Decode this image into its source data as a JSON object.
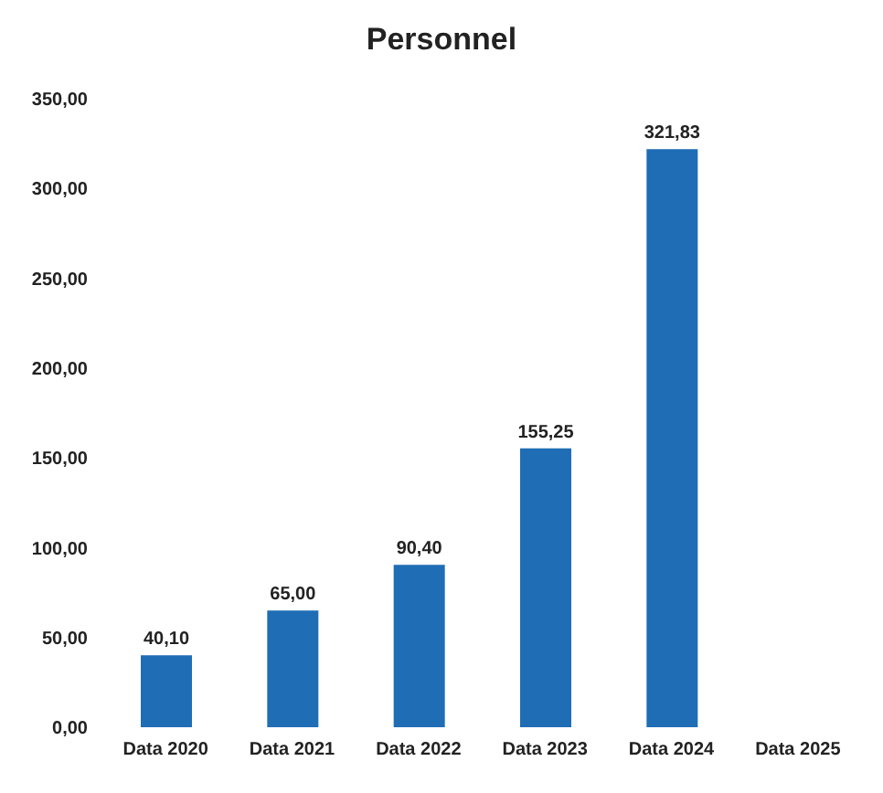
{
  "chart_data": {
    "type": "bar",
    "title": "Personnel",
    "categories": [
      "Data 2020",
      "Data 2021",
      "Data 2022",
      "Data 2023",
      "Data 2024",
      "Data 2025"
    ],
    "values": [
      40.1,
      65.0,
      90.4,
      155.25,
      321.83,
      null
    ],
    "value_labels": [
      "40,10",
      "65,00",
      "90,40",
      "155,25",
      "321,83",
      null
    ],
    "color": "#1f6db5",
    "ylim": [
      0,
      350
    ],
    "yticks": [
      {
        "value": 0,
        "label": "0,00"
      },
      {
        "value": 50,
        "label": "50,00"
      },
      {
        "value": 100,
        "label": "100,00"
      },
      {
        "value": 150,
        "label": "150,00"
      },
      {
        "value": 200,
        "label": "200,00"
      },
      {
        "value": 250,
        "label": "250,00"
      },
      {
        "value": 300,
        "label": "300,00"
      },
      {
        "value": 350,
        "label": "350,00"
      }
    ],
    "grid": false,
    "legend": false
  }
}
